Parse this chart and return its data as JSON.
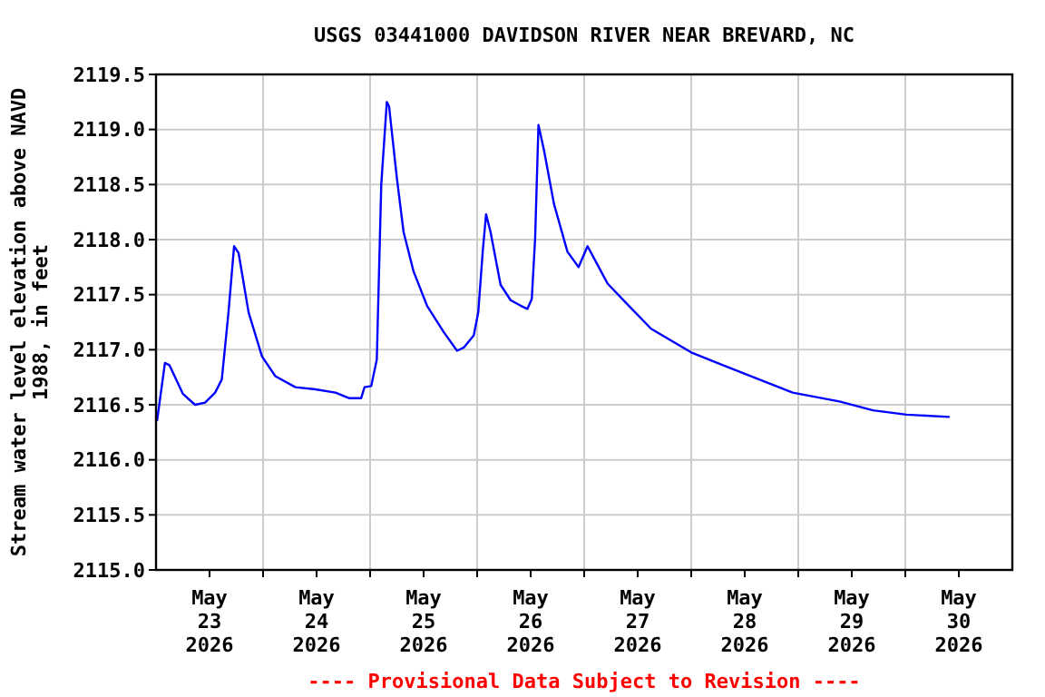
{
  "chart_data": {
    "type": "line",
    "title": "USGS 03441000 DAVIDSON RIVER NEAR BREVARD, NC",
    "ylabel": "Stream water level elevation above NAVD 1988, in feet",
    "annotations": [
      "---- Provisional Data Subject to Revision ----"
    ],
    "xlim": [
      "2026-05-23T00:00",
      "2026-05-31T00:00"
    ],
    "xticks": [
      {
        "value": "2026-05-23T12:00",
        "label": "May\n23\n2026"
      },
      {
        "value": "2026-05-24T12:00",
        "label": "May\n24\n2026"
      },
      {
        "value": "2026-05-25T12:00",
        "label": "May\n25\n2026"
      },
      {
        "value": "2026-05-26T12:00",
        "label": "May\n26\n2026"
      },
      {
        "value": "2026-05-27T12:00",
        "label": "May\n27\n2026"
      },
      {
        "value": "2026-05-28T12:00",
        "label": "May\n28\n2026"
      },
      {
        "value": "2026-05-29T12:00",
        "label": "May\n29\n2026"
      },
      {
        "value": "2026-05-30T12:00",
        "label": "May\n30\n2026"
      },
      {
        "value": "2026-05-24T00:00",
        "label": null
      },
      {
        "value": "2026-05-25T00:00",
        "label": null
      },
      {
        "value": "2026-05-26T00:00",
        "label": null
      },
      {
        "value": "2026-05-27T00:00",
        "label": null
      },
      {
        "value": "2026-05-28T00:00",
        "label": null
      },
      {
        "value": "2026-05-29T00:00",
        "label": null
      },
      {
        "value": "2026-05-30T00:00",
        "label": null
      }
    ],
    "ylim": [
      2115.0,
      2119.5
    ],
    "yticks": [
      {
        "value": 2115,
        "label": "2115.0"
      },
      {
        "value": 2115.5,
        "label": "2115.5"
      },
      {
        "value": 2116,
        "label": "2116.0"
      },
      {
        "value": 2116.5,
        "label": "2116.5"
      },
      {
        "value": 2117,
        "label": "2117.0"
      },
      {
        "value": 2117.5,
        "label": "2117.5"
      },
      {
        "value": 2118,
        "label": "2118.0"
      },
      {
        "value": 2118.5,
        "label": "2118.5"
      },
      {
        "value": 2119,
        "label": "2119.0"
      },
      {
        "value": 2119.5,
        "label": "2119.5"
      }
    ],
    "grid": true,
    "marker": "none",
    "line_style": "solid",
    "series": [
      {
        "color": "#0000ff",
        "x": [
          "2026-05-23T00:15",
          "2026-05-23T02:00",
          "2026-05-23T03:00",
          "2026-05-23T04:30",
          "2026-05-23T06:00",
          "2026-05-23T08:45",
          "2026-05-23T11:00",
          "2026-05-23T13:15",
          "2026-05-23T14:45",
          "2026-05-23T16:15",
          "2026-05-23T17:30",
          "2026-05-23T18:30",
          "2026-05-23T20:45",
          "2026-05-23T23:45",
          "2026-05-24T02:45",
          "2026-05-24T07:15",
          "2026-05-24T11:45",
          "2026-05-24T16:15",
          "2026-05-24T19:15",
          "2026-05-24T22:00",
          "2026-05-24T22:45",
          "2026-05-25T00:15",
          "2026-05-25T01:30",
          "2026-05-25T02:30",
          "2026-05-25T03:45",
          "2026-05-25T04:15",
          "2026-05-25T06:00",
          "2026-05-25T07:30",
          "2026-05-25T09:45",
          "2026-05-25T12:45",
          "2026-05-25T16:30",
          "2026-05-25T19:30",
          "2026-05-25T21:00",
          "2026-05-25T23:15",
          "2026-05-26T00:15",
          "2026-05-26T01:15",
          "2026-05-26T02:00",
          "2026-05-26T03:00",
          "2026-05-26T05:15",
          "2026-05-26T07:30",
          "2026-05-26T09:45",
          "2026-05-26T11:15",
          "2026-05-26T12:15",
          "2026-05-26T13:00",
          "2026-05-26T13:45",
          "2026-05-26T15:00",
          "2026-05-26T17:15",
          "2026-05-26T20:15",
          "2026-05-26T22:45",
          "2026-05-27T00:45",
          "2026-05-27T03:00",
          "2026-05-27T05:15",
          "2026-05-27T09:45",
          "2026-05-27T15:00",
          "2026-05-28T00:15",
          "2026-05-28T07:45",
          "2026-05-28T15:15",
          "2026-05-28T22:45",
          "2026-05-29T09:15",
          "2026-05-29T16:45",
          "2026-05-30T00:15",
          "2026-05-30T09:45"
        ],
        "values": [
          2116.36,
          2116.88,
          2116.86,
          2116.73,
          2116.6,
          2116.5,
          2116.52,
          2116.61,
          2116.73,
          2117.34,
          2117.94,
          2117.88,
          2117.34,
          2116.94,
          2116.76,
          2116.66,
          2116.64,
          2116.61,
          2116.56,
          2116.56,
          2116.66,
          2116.67,
          2116.91,
          2118.5,
          2119.25,
          2119.21,
          2118.56,
          2118.07,
          2117.71,
          2117.4,
          2117.16,
          2116.99,
          2117.02,
          2117.13,
          2117.34,
          2117.89,
          2118.23,
          2118.07,
          2117.59,
          2117.45,
          2117.4,
          2117.37,
          2117.46,
          2118.01,
          2119.04,
          2118.81,
          2118.32,
          2117.89,
          2117.75,
          2117.94,
          2117.77,
          2117.6,
          2117.41,
          2117.19,
          2116.97,
          2116.85,
          2116.73,
          2116.61,
          2116.53,
          2116.45,
          2116.41,
          2116.39
        ]
      }
    ]
  }
}
